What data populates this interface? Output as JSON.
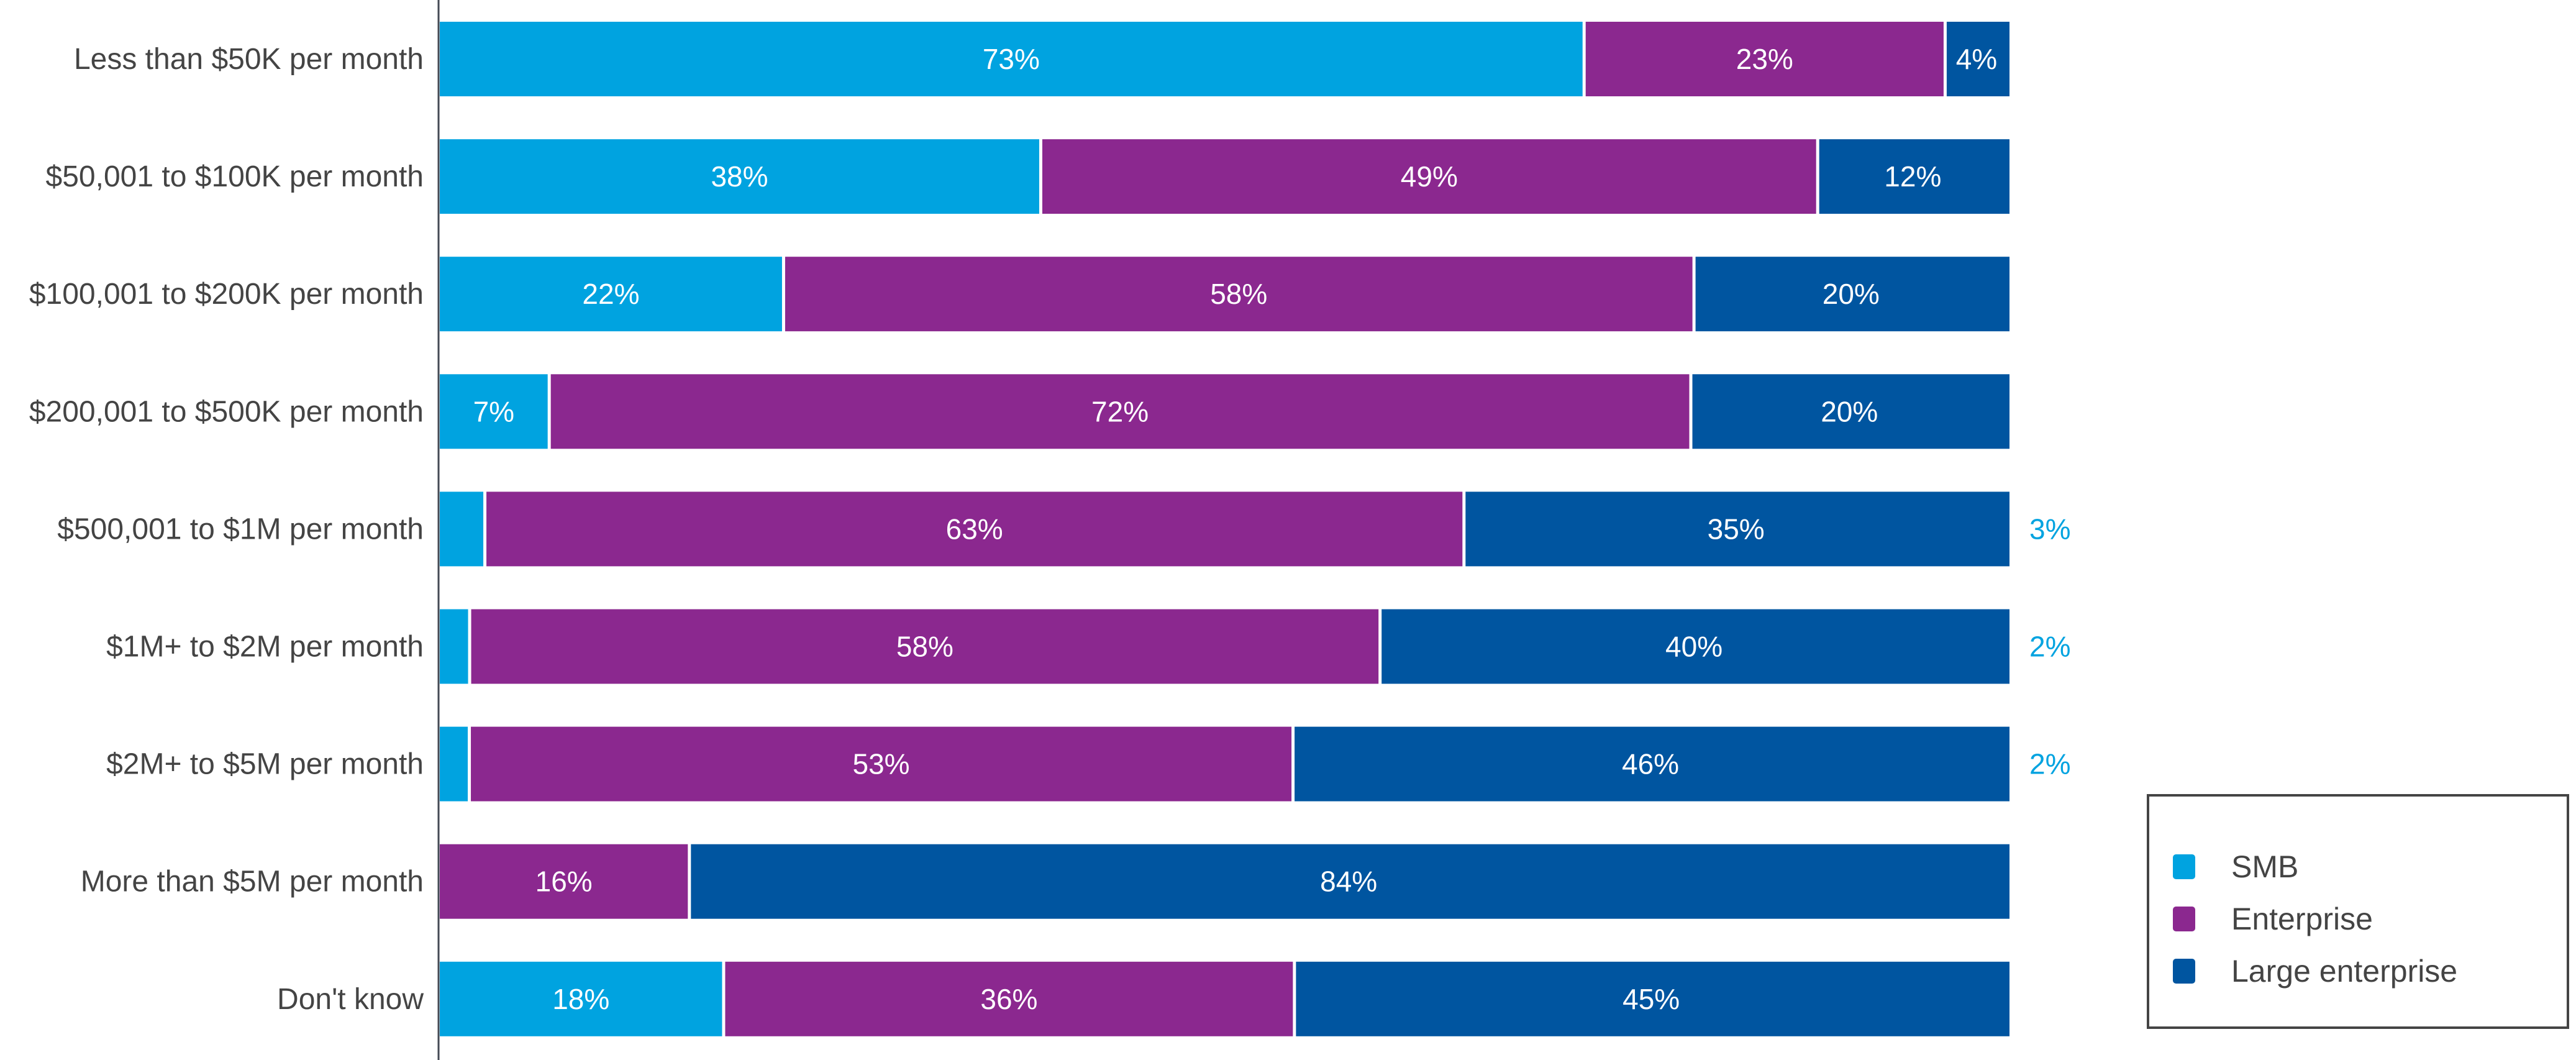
{
  "chart_data": {
    "type": "bar",
    "orientation": "horizontal",
    "stacked": true,
    "normalized": true,
    "categories": [
      "Less than $50K per month",
      "$50,001 to $100K per month",
      "$100,001 to $200K per month",
      "$200,001 to $500K per month",
      "$500,001 to $1M per month",
      "$1M+ to $2M per month",
      "$2M+ to $5M per month",
      "More than $5M per month",
      "Don't know"
    ],
    "series": [
      {
        "name": "SMB",
        "color": "#00A3E0",
        "values": [
          73,
          38,
          22,
          7,
          3,
          2,
          2,
          0,
          18
        ]
      },
      {
        "name": "Enterprise",
        "color": "#8B288F",
        "values": [
          23,
          49,
          58,
          72,
          63,
          58,
          53,
          16,
          36
        ]
      },
      {
        "name": "Large enterprise",
        "color": "#0055A0",
        "values": [
          4,
          12,
          20,
          20,
          35,
          40,
          46,
          84,
          45
        ]
      }
    ],
    "value_suffix": "%",
    "grid": false,
    "legend_position": "bottom-right"
  }
}
